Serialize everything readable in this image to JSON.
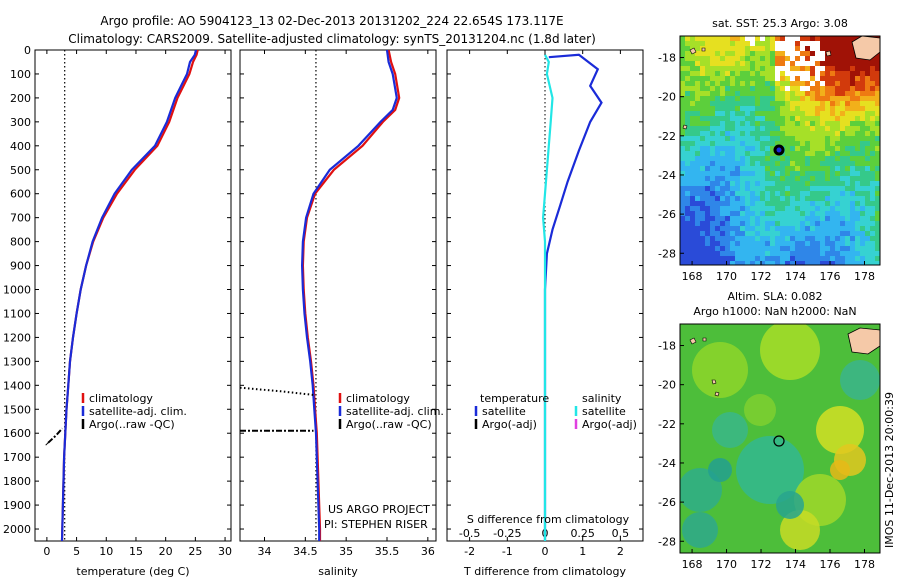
{
  "header": {
    "line1": "Argo profile: AO 5904123_13 02-Dec-2013 20131202_224 22.654S 173.117E",
    "line2": "Climatology: CARS2009. Satellite-adjusted climatology: synTS_20131204.nc (1.8d later)"
  },
  "side_stamp": "IMOS 11-Dec-2013 20:00:39",
  "colors": {
    "climatology": "#e01010",
    "satellite": "#1a2bd8",
    "argo": "#000000",
    "satellite_s": "#22e6e6",
    "argo_s": "#e040e0"
  },
  "chart_data": [
    {
      "id": "temperature",
      "type": "line",
      "xlabel": "temperature (deg C)",
      "ylabel": "",
      "xlim": [
        -2,
        31
      ],
      "ylim": [
        2050,
        0
      ],
      "x_ticks": [
        "0",
        "5",
        "10",
        "15",
        "20",
        "25",
        "30"
      ],
      "y_ticks": [
        "0",
        "100",
        "200",
        "300",
        "400",
        "500",
        "600",
        "700",
        "800",
        "900",
        "1000",
        "1100",
        "1200",
        "1300",
        "1400",
        "1500",
        "1600",
        "1700",
        "1800",
        "1900",
        "2000"
      ],
      "legend": [
        "climatology",
        "satellite-adj. clim.",
        "Argo(..raw -QC)"
      ],
      "series": [
        {
          "name": "climatology",
          "color": "climatology",
          "points": [
            [
              25.4,
              0
            ],
            [
              25.2,
              20
            ],
            [
              24.6,
              50
            ],
            [
              24.0,
              100
            ],
            [
              23.0,
              150
            ],
            [
              22.0,
              200
            ],
            [
              20.6,
              300
            ],
            [
              18.6,
              400
            ],
            [
              14.8,
              500
            ],
            [
              11.8,
              600
            ],
            [
              9.5,
              700
            ],
            [
              7.8,
              800
            ],
            [
              6.6,
              900
            ],
            [
              5.7,
              1000
            ],
            [
              5.0,
              1100
            ],
            [
              4.4,
              1200
            ],
            [
              3.9,
              1300
            ],
            [
              3.6,
              1400
            ],
            [
              3.3,
              1500
            ],
            [
              3.1,
              1600
            ],
            [
              2.9,
              1700
            ],
            [
              2.8,
              1800
            ],
            [
              2.7,
              1900
            ],
            [
              2.6,
              2000
            ],
            [
              2.55,
              2050
            ]
          ]
        },
        {
          "name": "satellite-adj. clim.",
          "color": "satellite",
          "points": [
            [
              25.1,
              0
            ],
            [
              24.9,
              20
            ],
            [
              24.1,
              50
            ],
            [
              23.6,
              100
            ],
            [
              22.6,
              150
            ],
            [
              21.6,
              200
            ],
            [
              20.2,
              300
            ],
            [
              18.2,
              400
            ],
            [
              14.3,
              500
            ],
            [
              11.4,
              600
            ],
            [
              9.3,
              700
            ],
            [
              7.7,
              800
            ],
            [
              6.6,
              900
            ],
            [
              5.7,
              1000
            ],
            [
              5.0,
              1100
            ],
            [
              4.4,
              1200
            ],
            [
              3.9,
              1300
            ],
            [
              3.6,
              1400
            ],
            [
              3.3,
              1500
            ],
            [
              3.1,
              1600
            ],
            [
              2.9,
              1700
            ],
            [
              2.8,
              1800
            ],
            [
              2.7,
              1900
            ],
            [
              2.6,
              2000
            ],
            [
              2.55,
              2050
            ]
          ]
        },
        {
          "name": "Argo(..raw -QC)",
          "color": "argo",
          "points": [
            [
              0.2,
              1640
            ],
            [
              1.5,
              1610
            ],
            [
              2.6,
              1580
            ]
          ]
        }
      ],
      "ref_line": 3.0
    },
    {
      "id": "salinity",
      "type": "line",
      "xlabel": "salinity",
      "ylabel": "",
      "xlim": [
        33.7,
        36.1
      ],
      "ylim": [
        2050,
        0
      ],
      "x_ticks": [
        "34",
        "34.5",
        "35",
        "35.5",
        "36"
      ],
      "legend": [
        "climatology",
        "satellite-adj. clim.",
        "Argo(..raw -QC)"
      ],
      "series": [
        {
          "name": "climatology",
          "color": "climatology",
          "points": [
            [
              35.52,
              0
            ],
            [
              35.55,
              50
            ],
            [
              35.6,
              100
            ],
            [
              35.65,
              200
            ],
            [
              35.6,
              250
            ],
            [
              35.45,
              300
            ],
            [
              35.2,
              400
            ],
            [
              34.85,
              500
            ],
            [
              34.62,
              600
            ],
            [
              34.52,
              700
            ],
            [
              34.48,
              800
            ],
            [
              34.47,
              900
            ],
            [
              34.48,
              1000
            ],
            [
              34.5,
              1100
            ],
            [
              34.53,
              1200
            ],
            [
              34.57,
              1300
            ],
            [
              34.6,
              1400
            ],
            [
              34.62,
              1500
            ],
            [
              34.64,
              1600
            ],
            [
              34.65,
              1700
            ],
            [
              34.66,
              1800
            ],
            [
              34.67,
              1900
            ],
            [
              34.68,
              2000
            ],
            [
              34.68,
              2050
            ]
          ]
        },
        {
          "name": "satellite-adj. clim.",
          "color": "satellite",
          "points": [
            [
              35.5,
              0
            ],
            [
              35.52,
              50
            ],
            [
              35.57,
              100
            ],
            [
              35.62,
              200
            ],
            [
              35.57,
              250
            ],
            [
              35.42,
              300
            ],
            [
              35.15,
              400
            ],
            [
              34.8,
              500
            ],
            [
              34.6,
              600
            ],
            [
              34.51,
              700
            ],
            [
              34.47,
              800
            ],
            [
              34.46,
              900
            ],
            [
              34.47,
              1000
            ],
            [
              34.49,
              1100
            ],
            [
              34.52,
              1200
            ],
            [
              34.56,
              1300
            ],
            [
              34.59,
              1400
            ],
            [
              34.61,
              1500
            ],
            [
              34.63,
              1600
            ],
            [
              34.64,
              1700
            ],
            [
              34.65,
              1800
            ],
            [
              34.66,
              1900
            ],
            [
              34.67,
              2000
            ],
            [
              34.67,
              2050
            ]
          ]
        },
        {
          "name": "Argo(..raw -QC)",
          "color": "argo",
          "points": [
            [
              33.7,
              1590
            ],
            [
              34.1,
              1590
            ],
            [
              34.6,
              1590
            ]
          ]
        },
        {
          "name": "Argo(..raw -QC) dotted",
          "color": "argo",
          "points": [
            [
              33.7,
              1410
            ],
            [
              34.2,
              1425
            ],
            [
              34.6,
              1440
            ]
          ]
        }
      ],
      "ref_line": 34.63,
      "annotations": [
        "US ARGO PROJECT",
        "PI: STEPHEN RISER"
      ]
    },
    {
      "id": "difference",
      "type": "line",
      "xlabel": "T difference from climatology",
      "top_label": "S difference from climatology",
      "xlim": [
        -2.6,
        2.6
      ],
      "ylim": [
        2050,
        0
      ],
      "x_ticks": [
        "-2",
        "-1",
        "0",
        "1",
        "2"
      ],
      "top_ticks": [
        "-0.5",
        "-0.25",
        "0",
        "0.25",
        "0.5"
      ],
      "legend_temperature_heading": "temperature",
      "legend_salinity_heading": "salinity",
      "legend": [
        "satellite",
        "Argo(-adj)",
        "satellite",
        "Argo(-adj)"
      ],
      "series": [
        {
          "name": "satellite",
          "color": "satellite",
          "points": [
            [
              0.1,
              30
            ],
            [
              0.9,
              20
            ],
            [
              1.4,
              80
            ],
            [
              1.2,
              150
            ],
            [
              1.5,
              220
            ],
            [
              1.2,
              300
            ],
            [
              0.9,
              420
            ],
            [
              0.6,
              550
            ],
            [
              0.4,
              650
            ],
            [
              0.2,
              750
            ],
            [
              0.05,
              850
            ],
            [
              0.0,
              1000
            ],
            [
              0.0,
              1400
            ],
            [
              0.0,
              2050
            ]
          ]
        },
        {
          "name": "satellite",
          "color": "satellite_s",
          "points": [
            [
              0.0,
              20
            ],
            [
              0.1,
              50
            ],
            [
              0.05,
              100
            ],
            [
              0.2,
              200
            ],
            [
              0.15,
              300
            ],
            [
              0.1,
              400
            ],
            [
              0.05,
              500
            ],
            [
              0.0,
              600
            ],
            [
              -0.05,
              700
            ],
            [
              0.0,
              800
            ],
            [
              0.0,
              1000
            ],
            [
              0.0,
              1500
            ],
            [
              0.0,
              2050
            ]
          ]
        }
      ]
    }
  ],
  "maps": [
    {
      "id": "sst_map",
      "title": "sat. SST: 25.3 Argo: 3.08",
      "x_ticks": [
        "168",
        "170",
        "172",
        "174",
        "176",
        "178"
      ],
      "y_ticks": [
        "-18",
        "-20",
        "-22",
        "-24",
        "-26",
        "-28"
      ],
      "argo_position": [
        173.1,
        -22.65
      ]
    },
    {
      "id": "sla_map",
      "title_line1": "Altim. SLA: 0.082",
      "title_line2": "Argo h1000: NaN h2000: NaN",
      "x_ticks": [
        "168",
        "170",
        "172",
        "174",
        "176",
        "178"
      ],
      "y_ticks": [
        "-18",
        "-20",
        "-22",
        "-24",
        "-26",
        "-28"
      ],
      "argo_position": [
        173.1,
        -22.65
      ]
    }
  ]
}
